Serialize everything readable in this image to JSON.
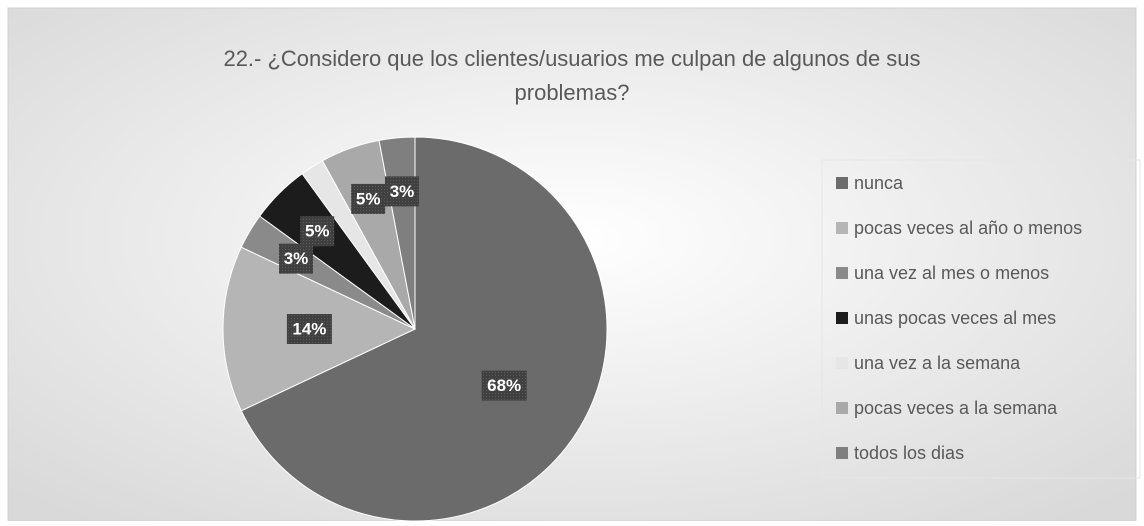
{
  "chart_data": {
    "type": "pie",
    "title": "22.- ¿Considero que los clientes/usuarios me culpan de algunos de sus problemas?",
    "categories": [
      "nunca",
      "pocas veces al año o menos",
      "una vez al mes o menos",
      "unas pocas veces al mes",
      "una vez a la semana",
      "pocas veces a la semana",
      "todos los dias"
    ],
    "values": [
      68,
      14,
      3,
      5,
      2,
      5,
      3
    ],
    "value_labels": [
      "68%",
      "14%",
      "3%",
      "5%",
      null,
      "5%",
      "3%"
    ],
    "colors": [
      "#6b6b6b",
      "#b5b5b5",
      "#8a8a8a",
      "#1c1c1c",
      "#e6e6e6",
      "#a9a9a9",
      "#7f7f7f"
    ],
    "legend": "right"
  }
}
